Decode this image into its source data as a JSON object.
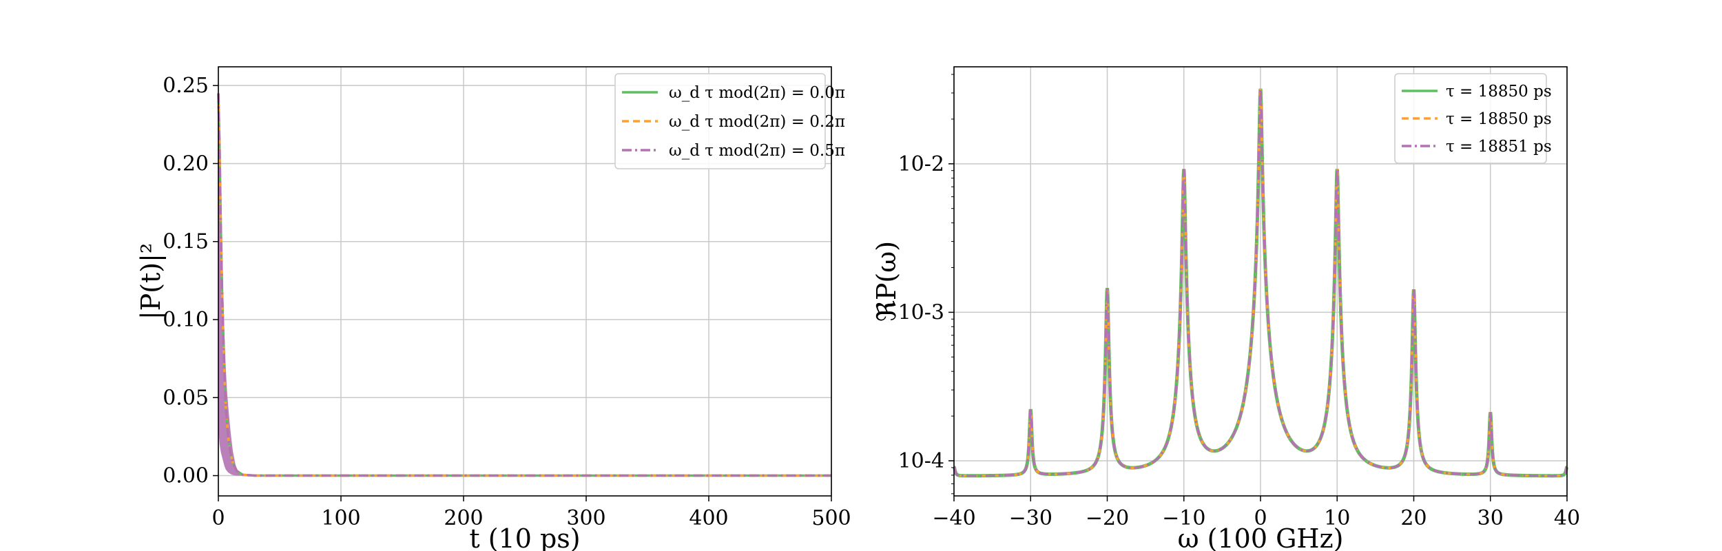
{
  "chart_data": [
    {
      "type": "line",
      "xlabel": "t (10 ps)",
      "ylabel": "|P(t)|²",
      "xlim": [
        0,
        500
      ],
      "ylim": [
        -0.013,
        0.262
      ],
      "xticks": [
        0,
        100,
        200,
        300,
        400,
        500
      ],
      "yticks": [
        0.0,
        0.05,
        0.1,
        0.15,
        0.2,
        0.25
      ],
      "ytick_labels": [
        "0.00",
        "0.05",
        "0.10",
        "0.15",
        "0.20",
        "0.25"
      ],
      "grid": true,
      "legend_position": "top-right",
      "series": [
        {
          "name": "ω_d τ mod(2π) = 0.0π",
          "color": "#5fbf5f",
          "dash": "solid",
          "x": [
            0,
            1,
            2,
            3,
            4,
            5,
            6,
            8,
            10,
            12,
            15,
            20,
            30,
            50,
            100,
            200,
            300,
            400,
            500
          ],
          "y": [
            0.245,
            0.21,
            0.16,
            0.12,
            0.09,
            0.065,
            0.045,
            0.025,
            0.014,
            0.008,
            0.003,
            0.0005,
            0.0,
            0.0,
            0.0,
            0.0,
            0.0,
            0.0,
            0.0
          ]
        },
        {
          "name": "ω_d τ mod(2π) = 0.2π",
          "color": "#ff9f2e",
          "dash": "dashed",
          "x": [
            0,
            1,
            2,
            3,
            4,
            5,
            6,
            8,
            10,
            12,
            15,
            20,
            30,
            50,
            100,
            200,
            300,
            400,
            500
          ],
          "y": [
            0.245,
            0.21,
            0.16,
            0.12,
            0.09,
            0.065,
            0.045,
            0.025,
            0.014,
            0.008,
            0.003,
            0.0005,
            0.0,
            0.0,
            0.0,
            0.0,
            0.0,
            0.0,
            0.0
          ]
        },
        {
          "name": "ω_d τ mod(2π) = 0.5π",
          "color": "#b372b3",
          "dash": "dashdot",
          "x": [
            0,
            1,
            2,
            3,
            4,
            5,
            6,
            8,
            10,
            12,
            15,
            20,
            30,
            50,
            100,
            200,
            300,
            400,
            500
          ],
          "y": [
            0.245,
            0.21,
            0.16,
            0.12,
            0.09,
            0.065,
            0.045,
            0.025,
            0.014,
            0.008,
            0.003,
            0.0005,
            0.0,
            0.0,
            0.0,
            0.0,
            0.0,
            0.0,
            0.0
          ]
        }
      ],
      "oscillation_envelope": {
        "color": "#b372b3",
        "x": [
          0,
          1,
          2,
          3,
          4,
          5,
          6,
          7,
          8,
          9,
          10,
          11,
          12,
          13,
          14,
          15,
          17,
          20
        ],
        "upper": [
          0.245,
          0.22,
          0.18,
          0.14,
          0.11,
          0.09,
          0.07,
          0.055,
          0.045,
          0.036,
          0.028,
          0.021,
          0.015,
          0.011,
          0.007,
          0.004,
          0.001,
          0.0
        ],
        "lower": [
          0.03,
          0.02,
          0.015,
          0.012,
          0.009,
          0.006,
          0.004,
          0.003,
          0.002,
          0.0015,
          0.001,
          0.0006,
          0.0004,
          0.0002,
          0.0001,
          0.0,
          0.0,
          0.0
        ]
      }
    },
    {
      "type": "line",
      "xlabel": "ω (100 GHz)",
      "ylabel": "ℜP(ω)",
      "xlim": [
        -40,
        40
      ],
      "ylim": [
        5.8e-05,
        0.045
      ],
      "yscale": "log",
      "xticks": [
        -40,
        -30,
        -20,
        -10,
        0,
        10,
        20,
        30,
        40
      ],
      "yticks": [
        0.0001,
        0.001,
        0.01
      ],
      "ytick_labels": [
        "10-4",
        "10-3",
        "10-2"
      ],
      "grid": true,
      "legend_position": "top-right",
      "baseline": 7.8e-05,
      "peaks": [
        {
          "x": -40,
          "y": 9e-05
        },
        {
          "x": -30,
          "y": 0.00022
        },
        {
          "x": -20,
          "y": 0.00145
        },
        {
          "x": -10,
          "y": 0.0092
        },
        {
          "x": 0,
          "y": 0.032
        },
        {
          "x": 10,
          "y": 0.0092
        },
        {
          "x": 20,
          "y": 0.00142
        },
        {
          "x": 30,
          "y": 0.00021
        },
        {
          "x": 40,
          "y": 9e-05
        }
      ],
      "series": [
        {
          "name": "τ = 18850 ps",
          "color": "#5fbf5f",
          "dash": "solid"
        },
        {
          "name": "τ = 18850 ps",
          "color": "#ff9f2e",
          "dash": "dashed"
        },
        {
          "name": "τ = 18851 ps",
          "color": "#b372b3",
          "dash": "dashdot"
        }
      ]
    }
  ]
}
